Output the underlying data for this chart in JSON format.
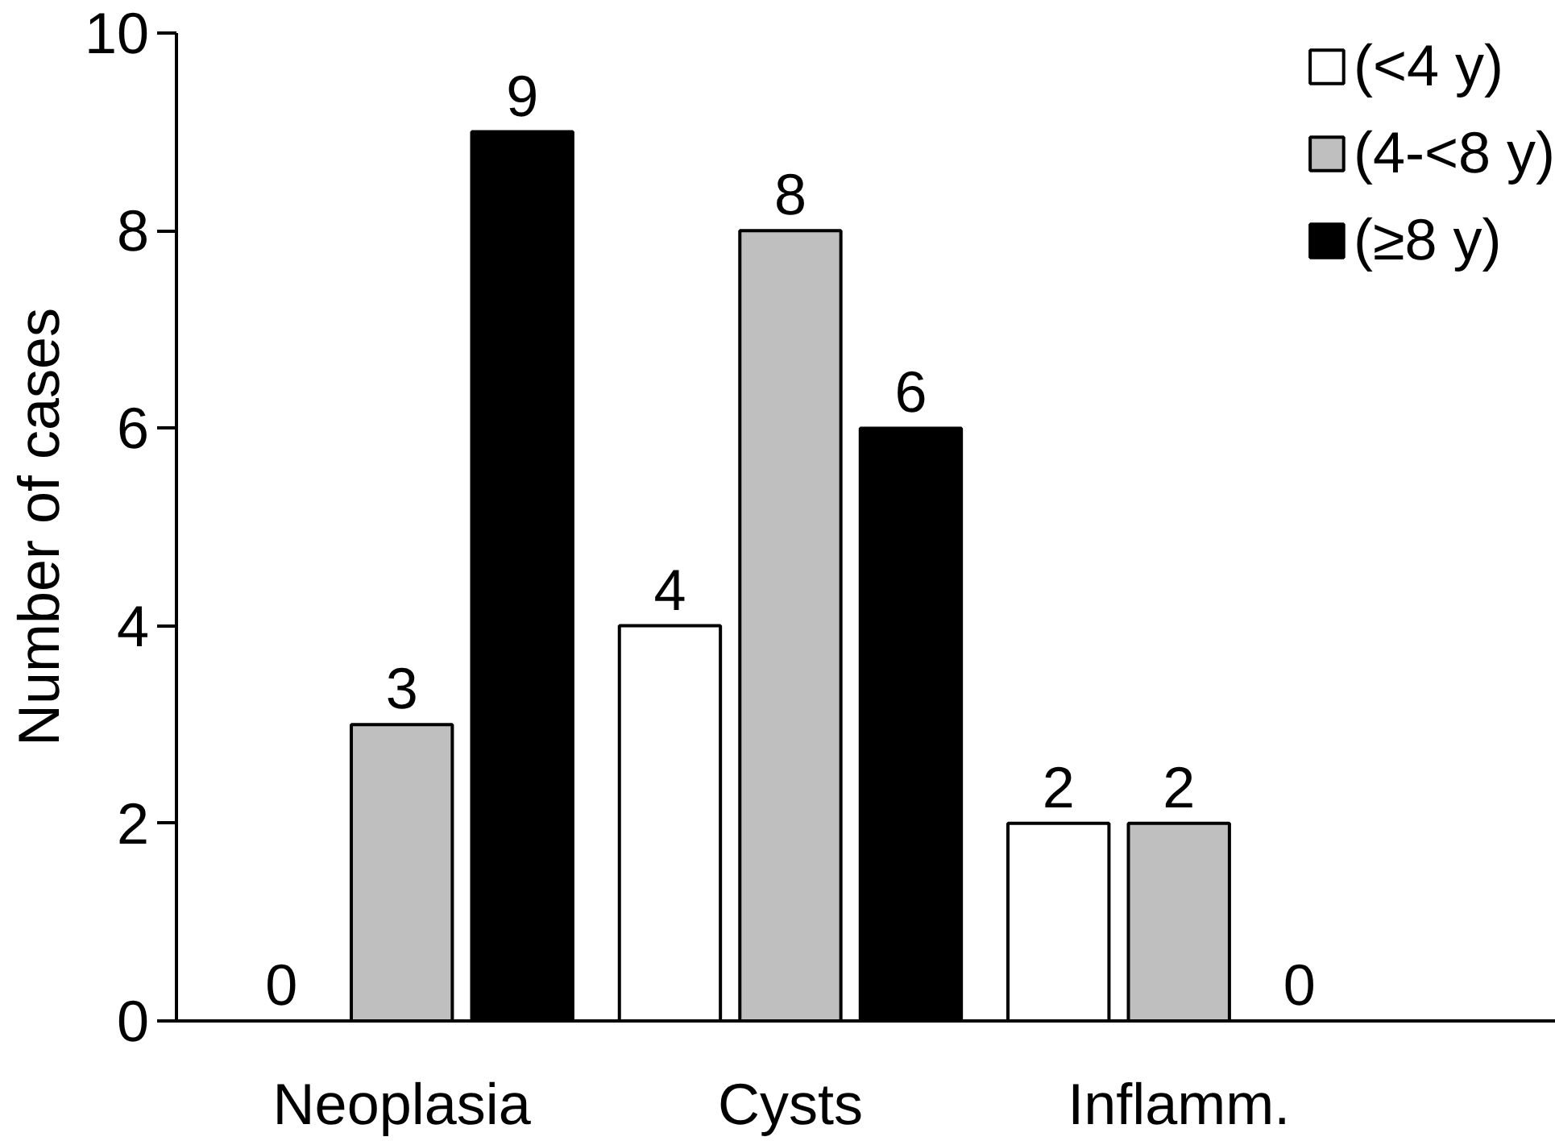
{
  "chart_data": {
    "type": "bar",
    "ylabel": "Number of cases",
    "categories": [
      "Neoplasia",
      "Cysts",
      "Inflamm."
    ],
    "series": [
      {
        "name": "(<4 y)",
        "color": "#ffffff",
        "values": [
          0,
          4,
          2
        ]
      },
      {
        "name": "(4-<8 y)",
        "color": "#bfbfbf",
        "values": [
          3,
          8,
          2
        ]
      },
      {
        "name": "(≥8 y)",
        "color": "#000000",
        "values": [
          9,
          6,
          0
        ]
      }
    ],
    "ylim": [
      0,
      10
    ],
    "yticks": [
      0,
      2,
      4,
      6,
      8,
      10
    ],
    "grid": false,
    "legend": "top right",
    "data_labels": true
  }
}
